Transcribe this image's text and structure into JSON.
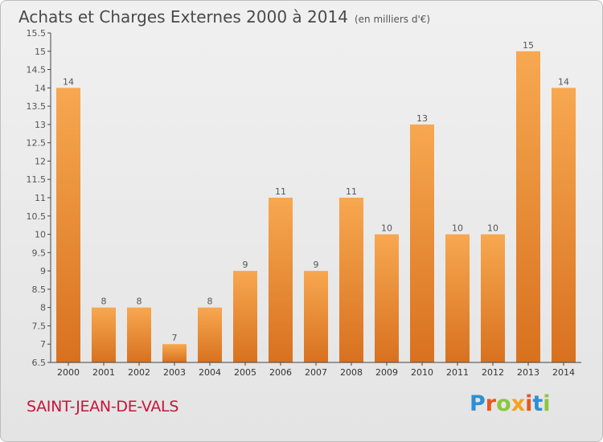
{
  "title": "Achats et Charges Externes 2000 à 2014",
  "subtitle": "(en milliers d'€)",
  "town": "SAINT-JEAN-DE-VALS",
  "brand": {
    "text": "Proxiti",
    "letter_colors": [
      "#2e8fd6",
      "#e8571e",
      "#8cc63f",
      "#f4a21e",
      "#e8571e",
      "#2e8fd6",
      "#8cc63f"
    ]
  },
  "colors": {
    "bar_light": "#f7a850",
    "bar_dark": "#d8711f",
    "axis": "#444444",
    "grid": "#cfcfcf",
    "label": "#555555"
  },
  "chart_data": {
    "type": "bar",
    "title": "Achats et Charges Externes 2000 à 2014",
    "categories": [
      "2000",
      "2001",
      "2002",
      "2003",
      "2004",
      "2005",
      "2006",
      "2007",
      "2008",
      "2009",
      "2010",
      "2011",
      "2012",
      "2013",
      "2014"
    ],
    "values": [
      14,
      8,
      8,
      7,
      8,
      9,
      11,
      9,
      11,
      10,
      13,
      10,
      10,
      15,
      14
    ],
    "ylim": [
      6.5,
      15.5
    ],
    "yticks": [
      "6.5",
      "7",
      "7.5",
      "8",
      "8.5",
      "9",
      "9.5",
      "10",
      "10.5",
      "11",
      "11.5",
      "12",
      "12.5",
      "13",
      "13.5",
      "14",
      "14.5",
      "15",
      "15.5"
    ],
    "xlabel": "",
    "ylabel": "",
    "grid": false,
    "legend": "none"
  }
}
